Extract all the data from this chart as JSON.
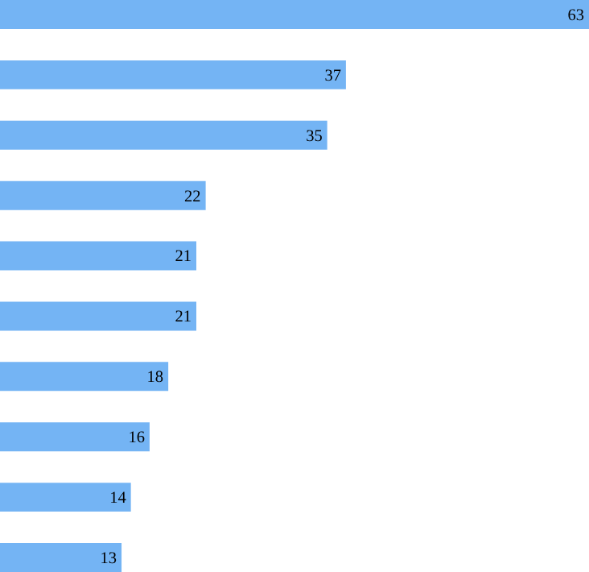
{
  "chart_data": {
    "type": "bar",
    "orientation": "horizontal",
    "categories": [
      null,
      null,
      null,
      null,
      null,
      null,
      null,
      null,
      null,
      null
    ],
    "values": [
      63,
      37,
      35,
      22,
      21,
      21,
      18,
      16,
      14,
      13
    ],
    "color": "#74b4f4",
    "data_labels": true
  }
}
